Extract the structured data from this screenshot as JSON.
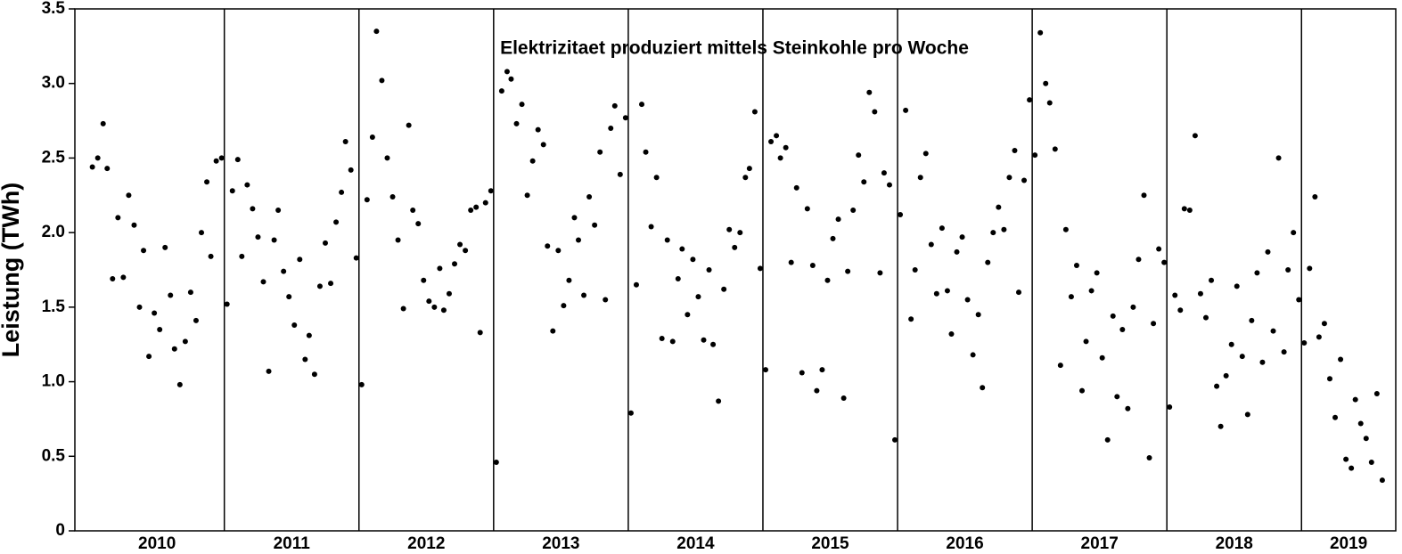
{
  "chart_data": {
    "type": "scatter",
    "title": "Elektrizitaet produziert mittels Steinkohle pro Woche",
    "ylabel": "Leistung (TWh)",
    "color": "#000000",
    "xlim": [
      2009.89,
      2019.7
    ],
    "ylim": [
      0,
      3.5
    ],
    "xticks": [
      {
        "value": 2010.5,
        "label": "2010"
      },
      {
        "value": 2011.5,
        "label": "2011"
      },
      {
        "value": 2012.5,
        "label": "2012"
      },
      {
        "value": 2013.5,
        "label": "2013"
      },
      {
        "value": 2014.5,
        "label": "2014"
      },
      {
        "value": 2015.5,
        "label": "2015"
      },
      {
        "value": 2016.5,
        "label": "2016"
      },
      {
        "value": 2017.5,
        "label": "2017"
      },
      {
        "value": 2018.5,
        "label": "2018"
      },
      {
        "value": 2019.35,
        "label": "2019"
      }
    ],
    "yticks": [
      0,
      0.5,
      {
        "value": 1,
        "label": "1.0"
      },
      1.5,
      {
        "value": 2,
        "label": "2.0"
      },
      2.5,
      {
        "value": 3,
        "label": "3.0"
      },
      3.5
    ],
    "year_lines": [
      2011,
      2012,
      2013,
      2014,
      2015,
      2016,
      2017,
      2018,
      2019
    ],
    "x": [
      2010.02,
      2010.06,
      2010.1,
      2010.13,
      2010.17,
      2010.21,
      2010.25,
      2010.29,
      2010.33,
      2010.37,
      2010.4,
      2010.44,
      2010.48,
      2010.52,
      2010.56,
      2010.6,
      2010.63,
      2010.67,
      2010.71,
      2010.75,
      2010.79,
      2010.83,
      2010.87,
      2010.9,
      2010.94,
      2010.98,
      2011.02,
      2011.06,
      2011.1,
      2011.13,
      2011.17,
      2011.21,
      2011.25,
      2011.29,
      2011.33,
      2011.37,
      2011.4,
      2011.44,
      2011.48,
      2011.52,
      2011.56,
      2011.6,
      2011.63,
      2011.67,
      2011.71,
      2011.75,
      2011.79,
      2011.83,
      2011.87,
      2011.9,
      2011.94,
      2011.98,
      2012.02,
      2012.06,
      2012.1,
      2012.13,
      2012.17,
      2012.21,
      2012.25,
      2012.29,
      2012.33,
      2012.37,
      2012.4,
      2012.44,
      2012.48,
      2012.52,
      2012.56,
      2012.6,
      2012.63,
      2012.67,
      2012.71,
      2012.75,
      2012.79,
      2012.83,
      2012.87,
      2012.9,
      2012.94,
      2012.98,
      2013.02,
      2013.06,
      2013.1,
      2013.13,
      2013.17,
      2013.21,
      2013.25,
      2013.29,
      2013.33,
      2013.37,
      2013.4,
      2013.44,
      2013.48,
      2013.52,
      2013.56,
      2013.6,
      2013.63,
      2013.67,
      2013.71,
      2013.75,
      2013.79,
      2013.83,
      2013.87,
      2013.9,
      2013.94,
      2013.98,
      2014.02,
      2014.06,
      2014.1,
      2014.13,
      2014.17,
      2014.21,
      2014.25,
      2014.29,
      2014.33,
      2014.37,
      2014.4,
      2014.44,
      2014.48,
      2014.52,
      2014.56,
      2014.6,
      2014.63,
      2014.67,
      2014.71,
      2014.75,
      2014.79,
      2014.83,
      2014.87,
      2014.9,
      2014.94,
      2014.98,
      2015.02,
      2015.06,
      2015.1,
      2015.13,
      2015.17,
      2015.21,
      2015.25,
      2015.29,
      2015.33,
      2015.37,
      2015.4,
      2015.44,
      2015.48,
      2015.52,
      2015.56,
      2015.6,
      2015.63,
      2015.67,
      2015.71,
      2015.75,
      2015.79,
      2015.83,
      2015.87,
      2015.9,
      2015.94,
      2015.98,
      2016.02,
      2016.06,
      2016.1,
      2016.13,
      2016.17,
      2016.21,
      2016.25,
      2016.29,
      2016.33,
      2016.37,
      2016.4,
      2016.44,
      2016.48,
      2016.52,
      2016.56,
      2016.6,
      2016.63,
      2016.67,
      2016.71,
      2016.75,
      2016.79,
      2016.83,
      2016.87,
      2016.9,
      2016.94,
      2016.98,
      2017.02,
      2017.06,
      2017.1,
      2017.13,
      2017.17,
      2017.21,
      2017.25,
      2017.29,
      2017.33,
      2017.37,
      2017.4,
      2017.44,
      2017.48,
      2017.52,
      2017.56,
      2017.6,
      2017.63,
      2017.67,
      2017.71,
      2017.75,
      2017.79,
      2017.83,
      2017.87,
      2017.9,
      2017.94,
      2017.98,
      2018.02,
      2018.06,
      2018.1,
      2018.13,
      2018.17,
      2018.21,
      2018.25,
      2018.29,
      2018.33,
      2018.37,
      2018.4,
      2018.44,
      2018.48,
      2018.52,
      2018.56,
      2018.6,
      2018.63,
      2018.67,
      2018.71,
      2018.75,
      2018.79,
      2018.83,
      2018.87,
      2018.9,
      2018.94,
      2018.98,
      2019.02,
      2019.06,
      2019.1,
      2019.13,
      2019.17,
      2019.21,
      2019.25,
      2019.29,
      2019.33,
      2019.37,
      2019.4,
      2019.44,
      2019.48,
      2019.52,
      2019.56,
      2019.6
    ],
    "values": [
      2.44,
      2.5,
      2.73,
      2.43,
      1.69,
      2.1,
      1.7,
      2.25,
      2.05,
      1.5,
      1.88,
      1.17,
      1.46,
      1.35,
      1.9,
      1.58,
      1.22,
      0.98,
      1.27,
      1.6,
      1.41,
      2.0,
      2.34,
      1.84,
      2.48,
      2.5,
      1.52,
      2.28,
      2.49,
      1.84,
      2.32,
      2.16,
      1.97,
      1.67,
      1.07,
      1.95,
      2.15,
      1.74,
      1.57,
      1.38,
      1.82,
      1.15,
      1.31,
      1.05,
      1.64,
      1.93,
      1.66,
      2.07,
      2.27,
      2.61,
      2.42,
      1.83,
      0.98,
      2.22,
      2.64,
      3.35,
      3.02,
      2.5,
      2.24,
      1.95,
      1.49,
      2.72,
      2.15,
      2.06,
      1.68,
      1.54,
      1.5,
      1.76,
      1.48,
      1.59,
      1.79,
      1.92,
      1.88,
      2.15,
      2.17,
      1.33,
      2.2,
      2.28,
      0.46,
      2.95,
      3.08,
      3.03,
      2.73,
      2.86,
      2.25,
      2.48,
      2.69,
      2.59,
      1.91,
      1.34,
      1.88,
      1.51,
      1.68,
      2.1,
      1.95,
      1.58,
      2.24,
      2.05,
      2.54,
      1.55,
      2.7,
      2.85,
      2.39,
      2.77,
      0.79,
      1.65,
      2.86,
      2.54,
      2.04,
      2.37,
      1.29,
      1.95,
      1.27,
      1.69,
      1.89,
      1.45,
      1.82,
      1.57,
      1.28,
      1.75,
      1.25,
      0.87,
      1.62,
      2.02,
      1.9,
      2.0,
      2.37,
      2.43,
      2.81,
      1.76,
      1.08,
      2.61,
      2.65,
      2.5,
      2.57,
      1.8,
      2.3,
      1.06,
      2.16,
      1.78,
      0.94,
      1.08,
      1.68,
      1.96,
      2.09,
      0.89,
      1.74,
      2.15,
      2.52,
      2.34,
      2.94,
      2.81,
      1.73,
      2.4,
      2.32,
      0.61,
      2.12,
      2.82,
      1.42,
      1.75,
      2.37,
      2.53,
      1.92,
      1.59,
      2.03,
      1.61,
      1.32,
      1.87,
      1.97,
      1.55,
      1.18,
      1.45,
      0.96,
      1.8,
      2.0,
      2.17,
      2.02,
      2.37,
      2.55,
      1.6,
      2.35,
      2.89,
      2.52,
      3.34,
      3.0,
      2.87,
      2.56,
      1.11,
      2.02,
      1.57,
      1.78,
      0.94,
      1.27,
      1.61,
      1.73,
      1.16,
      0.61,
      1.44,
      0.9,
      1.35,
      0.82,
      1.5,
      1.82,
      2.25,
      0.49,
      1.39,
      1.89,
      1.8,
      0.83,
      1.58,
      1.48,
      2.16,
      2.15,
      2.65,
      1.59,
      1.43,
      1.68,
      0.97,
      0.7,
      1.04,
      1.25,
      1.64,
      1.17,
      0.78,
      1.41,
      1.73,
      1.13,
      1.87,
      1.34,
      2.5,
      1.2,
      1.75,
      2.0,
      1.55,
      1.26,
      1.76,
      2.24,
      1.3,
      1.39,
      1.02,
      0.76,
      1.15,
      0.48,
      0.42,
      0.88,
      0.72,
      0.62,
      0.46,
      0.92,
      0.34
    ]
  }
}
